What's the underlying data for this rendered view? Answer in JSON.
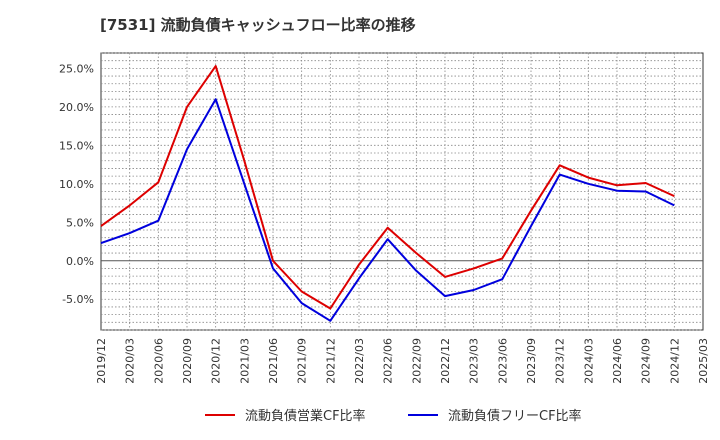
{
  "chart_data": {
    "type": "line",
    "title": "[7531]  流動負債キャッシュフロー比率の推移",
    "x_ticks": [
      "2019/12",
      "2020/03",
      "2020/06",
      "2020/09",
      "2020/12",
      "2021/03",
      "2021/06",
      "2021/09",
      "2021/12",
      "2022/03",
      "2022/06",
      "2022/09",
      "2022/12",
      "2023/03",
      "2023/06",
      "2023/09",
      "2023/12",
      "2024/03",
      "2024/06",
      "2024/09",
      "2024/12",
      "2025/03"
    ],
    "y_ticks": [
      -5,
      0,
      5,
      10,
      15,
      20,
      25
    ],
    "y_tick_labels": [
      "-5.0%",
      "0.0%",
      "5.0%",
      "10.0%",
      "15.0%",
      "20.0%",
      "25.0%"
    ],
    "ylim": [
      -9,
      27
    ],
    "grid": true,
    "legend_position": "bottom",
    "series": [
      {
        "name": "流動負債営業CF比率",
        "color": "#dd0000",
        "x": [
          "2019/12",
          "2020/03",
          "2020/06",
          "2020/09",
          "2020/12",
          "2021/03",
          "2021/06",
          "2021/09",
          "2021/12",
          "2022/03",
          "2022/06",
          "2022/09",
          "2022/12",
          "2023/03",
          "2023/06",
          "2023/09",
          "2023/12",
          "2024/03",
          "2024/06",
          "2024/09",
          "2024/12"
        ],
        "values": [
          4.5,
          7.2,
          10.2,
          20.0,
          25.3,
          13.0,
          0.0,
          -4.0,
          -6.2,
          -0.5,
          4.3,
          1.0,
          -2.1,
          -1.0,
          0.3,
          6.5,
          12.4,
          10.8,
          9.8,
          10.1,
          8.4
        ]
      },
      {
        "name": "流動負債フリーCF比率",
        "color": "#0000dd",
        "x": [
          "2019/12",
          "2020/03",
          "2020/06",
          "2020/09",
          "2020/12",
          "2021/03",
          "2021/06",
          "2021/09",
          "2021/12",
          "2022/03",
          "2022/06",
          "2022/09",
          "2022/12",
          "2023/03",
          "2023/06",
          "2023/09",
          "2023/12",
          "2024/03",
          "2024/06",
          "2024/09",
          "2024/12"
        ],
        "values": [
          2.3,
          3.6,
          5.2,
          14.5,
          21.0,
          10.0,
          -1.0,
          -5.5,
          -7.8,
          -2.3,
          2.8,
          -1.3,
          -4.6,
          -3.8,
          -2.4,
          4.5,
          11.2,
          10.0,
          9.1,
          9.0,
          7.2
        ]
      }
    ]
  }
}
